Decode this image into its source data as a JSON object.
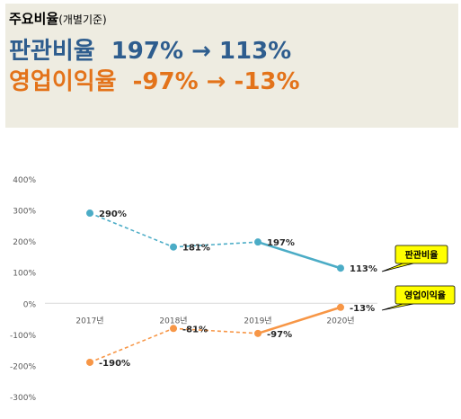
{
  "header": {
    "subtitle": "주요비율",
    "subtitle_note": "(개별기준)",
    "sga": {
      "label": "판관비율",
      "change": "197% → 113%"
    },
    "op": {
      "label": "영업이익율",
      "change": "-97% → -13%"
    }
  },
  "colors": {
    "sga": "#4bacc6",
    "op": "#f79646",
    "sga_text": "#2e5d8e",
    "op_text": "#e3731a",
    "callout_fill": "#ffff00"
  },
  "chart_data": {
    "type": "line",
    "categories": [
      "2017년",
      "2018년",
      "2019년",
      "2020년"
    ],
    "ylim": [
      -300,
      400
    ],
    "yticks": [
      "400%",
      "300%",
      "200%",
      "100%",
      "0%",
      "-100%",
      "-200%",
      "-300%"
    ],
    "ytick_values": [
      400,
      300,
      200,
      100,
      0,
      -100,
      -200,
      -300
    ],
    "series": [
      {
        "name": "판관비율",
        "values": [
          290,
          181,
          197,
          113
        ],
        "labels": [
          "290%",
          "181%",
          "197%",
          "113%"
        ],
        "dashed_until_index": 2,
        "color_key": "sga"
      },
      {
        "name": "영업이익율",
        "values": [
          -190,
          -81,
          -97,
          -13
        ],
        "labels": [
          "-190%",
          "-81%",
          "-97%",
          "-13%"
        ],
        "dashed_until_index": 2,
        "color_key": "op"
      }
    ],
    "grid": false
  }
}
